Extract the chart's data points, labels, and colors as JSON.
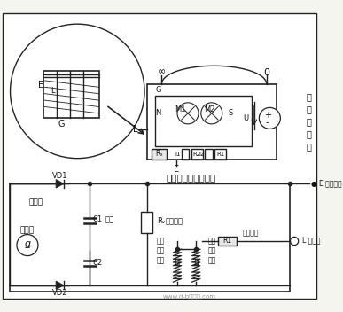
{
  "line_color": "#222222",
  "text_color": "#111111",
  "circuit_label": "兆欧表内部电路结构",
  "right_label": "直\n流\n发\n电\n机",
  "diode_label": "二极管",
  "generator_label": "发电机",
  "capacitor_label": "电容",
  "voltage_resist_label": "限压电阻",
  "current_resist_label": "限流电阻",
  "E_line_label": "E 接地引线",
  "L_line_label": "L 接线路",
  "head_v_label": "表头\n电压\n线圈",
  "head_i_label": "表头\n电压\n线圈",
  "watermark": "www.d-b保护环.com",
  "bg_color": "#f5f5f0"
}
